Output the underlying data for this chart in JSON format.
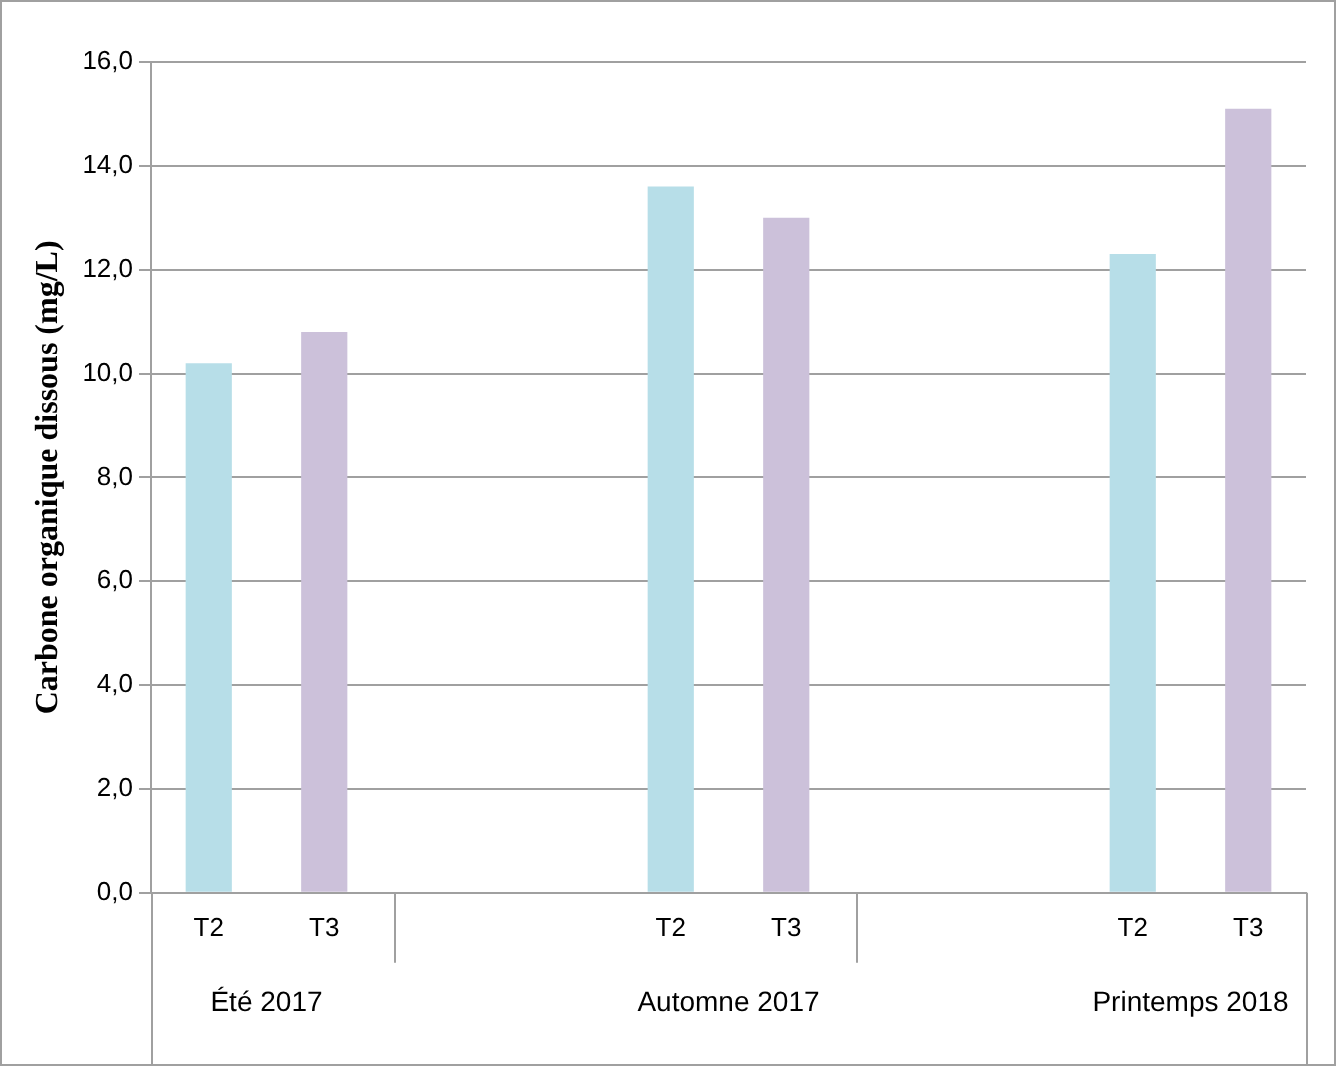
{
  "chart_data": {
    "type": "bar",
    "ylabel": "Carbone organique dissous (mg/L)",
    "categories": [
      "T2",
      "T3",
      null,
      null,
      "T2",
      "T3",
      null,
      null,
      "T2",
      "T3"
    ],
    "series": [
      {
        "values": [
          10.2,
          10.8,
          null,
          null,
          13.6,
          13.0,
          null,
          null,
          12.3,
          15.1
        ],
        "colors": [
          "#b7dee8",
          "#ccc1da",
          null,
          null,
          "#b7dee8",
          "#ccc1da",
          null,
          null,
          "#b7dee8",
          "#ccc1da"
        ]
      }
    ],
    "ylim": [
      0,
      16
    ],
    "yticks": [
      {
        "value": 0,
        "label": "0,0"
      },
      {
        "value": 2,
        "label": "2,0"
      },
      {
        "value": 4,
        "label": "4,0"
      },
      {
        "value": 6,
        "label": "6,0"
      },
      {
        "value": 8,
        "label": "8,0"
      },
      {
        "value": 10,
        "label": "10,0"
      },
      {
        "value": 12,
        "label": "12,0"
      },
      {
        "value": 14,
        "label": "14,0"
      },
      {
        "value": 16,
        "label": "16,0"
      }
    ],
    "grid": "y",
    "legend": false,
    "annotations": [
      "Été 2017",
      "Automne 2017",
      "Printemps 2018"
    ]
  }
}
